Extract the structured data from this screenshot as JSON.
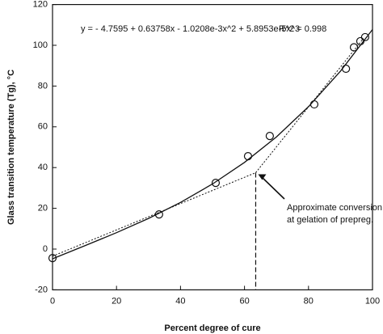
{
  "chart_data": {
    "type": "scatter",
    "equation": "y =  - 4.7595 + 0.63758x  - 1.0208e-3x^2 + 5.8953e-5x^3",
    "r_squared": "R^2 = 0.998",
    "annotation": [
      "Approximate conversion",
      "at gelation of prepreg."
    ],
    "x_label": "Percent degree of cure",
    "y_label": "Glass transition temperature (Tg), °C",
    "xlim": [
      0,
      100
    ],
    "ylim": [
      -20,
      120
    ],
    "xticks": [
      0,
      20,
      40,
      60,
      80,
      100
    ],
    "yticks": [
      -20,
      0,
      20,
      40,
      60,
      80,
      100,
      120
    ],
    "series": [
      {
        "style": "points",
        "color": "#111",
        "x": [
          0,
          33.3,
          51,
          61.1,
          67.9,
          81.8,
          91.7,
          94.2,
          96.2,
          97.7
        ],
        "values": [
          -4.4,
          17,
          32.5,
          45.6,
          55.5,
          71,
          88.5,
          99,
          102,
          104
        ]
      },
      {
        "style": "fit",
        "color": "#111",
        "x": [
          0,
          10,
          20,
          30,
          40,
          50,
          60,
          70,
          80,
          90,
          100
        ],
        "values": [
          -4.76,
          1.57,
          8.06,
          15.04,
          22.88,
          31.94,
          42.55,
          55.09,
          69.9,
          87.33,
          107.74
        ]
      },
      {
        "style": "dotted",
        "color": "#111",
        "x": [
          0,
          63.5,
          97
        ],
        "values": [
          -3.5,
          37.5,
          103
        ]
      }
    ]
  }
}
